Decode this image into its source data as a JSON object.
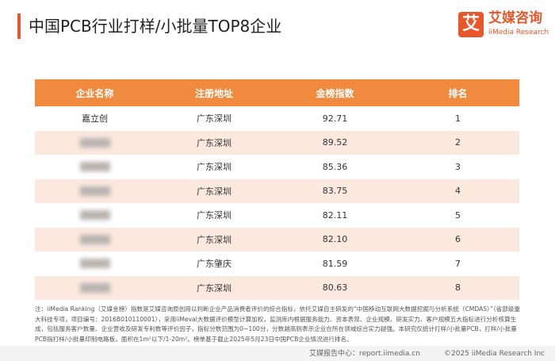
{
  "header": {
    "title": "中国PCB行业打样/小批量TOP8企业",
    "logo_icon": "艾",
    "logo_name": "艾媒咨询",
    "logo_sub": "iiMedia Research"
  },
  "table": {
    "columns": [
      "企业名称",
      "注册地址",
      "金榜指数",
      "排名"
    ],
    "rows": [
      {
        "name": "嘉立创",
        "location": "广东深圳",
        "score": "92.71",
        "rank": "1"
      },
      {
        "location": "广东深圳",
        "score": "89.52",
        "rank": "2"
      },
      {
        "location": "广东深圳",
        "score": "85.36",
        "rank": "3"
      },
      {
        "location": "广东深圳",
        "score": "83.75",
        "rank": "4"
      },
      {
        "location": "广东深圳",
        "score": "82.11",
        "rank": "5"
      },
      {
        "location": "广东深圳",
        "score": "82.10",
        "rank": "6"
      },
      {
        "location": "广东肇庆",
        "score": "81.59",
        "rank": "7"
      },
      {
        "location": "广东深圳",
        "score": "80.63",
        "rank": "8"
      }
    ]
  },
  "note": "注：iiMedia Ranking（艾媒金榜）指数是艾媒咨询原创用以判断企业产品消费者评价的综合指标，依托艾媒自主研发的“中国移动互联网大数据挖掘与分析系统（CMDAS）”（省部级重大科技专项，项目编号：2016B010110001），采用iiMeval大数据评价模型计算加权，监测库内根据服务能力、资本表现、企业规模、研发实力、客户规模五大指标进行分析核算生成，包括服务客户数量、企业营收及研发专利数等评价因子，指标分数范围为0~100分，分数越高则表示企业在所在领域综合实力越强。本研究仅统计打样/小批量PCB，打样/小批量PCB指打样/小批量印制电路板，面积在1m²以下/1-20m²。榜单基于截止2025年5月23日中国PCB企业情况进行排名。",
  "footer": {
    "source": "艾媒报告中心：report.iimedia.cn",
    "copyright": "©2025  iiMedia Research  Inc"
  }
}
